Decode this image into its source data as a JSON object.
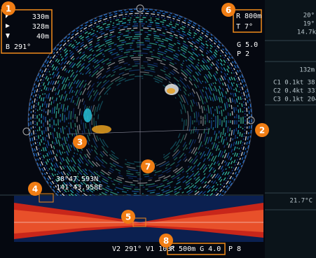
{
  "readout_box": {
    "lines": [
      "330m",
      "328m",
      "40m",
      "B 291°"
    ]
  },
  "range_box": {
    "lines": [
      "R 800m",
      "T 7°"
    ]
  },
  "gain": {
    "lines": [
      "G 5.0",
      "P 2"
    ]
  },
  "side_panel": {
    "top": [
      "20°",
      "19°",
      "14.7k"
    ],
    "depth": "132m",
    "currents": [
      "C1 0.1kt 38°",
      "C2 0.4kt 331°",
      "C3 0.1kt 204°"
    ],
    "temperature": "21.7°C"
  },
  "position": {
    "lat": "38°47.593N",
    "lon": "141°43.958E"
  },
  "bottom_bar": {
    "left": "V2 291° V1 103°",
    "boxed": "R 500m G 4.0",
    "right": "P 8"
  },
  "callouts": [
    "1",
    "2",
    "3",
    "4",
    "5",
    "6",
    "7",
    "8"
  ]
}
